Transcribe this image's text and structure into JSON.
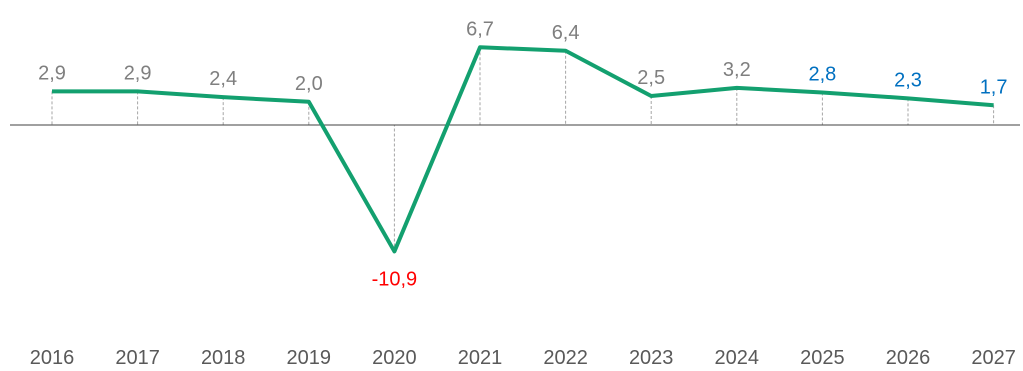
{
  "chart_data": {
    "type": "line",
    "categories": [
      "2016",
      "2017",
      "2018",
      "2019",
      "2020",
      "2021",
      "2022",
      "2023",
      "2024",
      "2025",
      "2026",
      "2027"
    ],
    "values": [
      2.9,
      2.9,
      2.4,
      2.0,
      -10.9,
      6.7,
      6.4,
      2.5,
      3.2,
      2.8,
      2.3,
      1.7
    ],
    "value_labels": [
      "2,9",
      "2,9",
      "2,4",
      "2,0",
      "-10,9",
      "6,7",
      "6,4",
      "2,5",
      "3,2",
      "2,8",
      "2,3",
      "1,7"
    ],
    "label_colors": [
      "#7f7f7f",
      "#7f7f7f",
      "#7f7f7f",
      "#7f7f7f",
      "#ff0000",
      "#7f7f7f",
      "#7f7f7f",
      "#7f7f7f",
      "#7f7f7f",
      "#0070c0",
      "#0070c0",
      "#0070c0"
    ],
    "title": "",
    "xlabel": "",
    "ylabel": "",
    "ylim": [
      -14,
      10
    ],
    "grid": false,
    "legend": "none",
    "line_color": "#13a06f",
    "drop_line_color": "#a6a6a6",
    "axis_color": "#404040"
  }
}
